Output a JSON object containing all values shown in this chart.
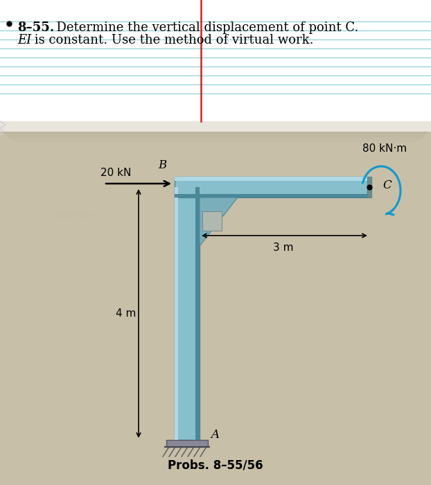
{
  "bg_color": "#c8bfa8",
  "paper_color": "#f8f6f0",
  "notebook_line_color": "#90d0d8",
  "red_line_color": "#cc2222",
  "title_bold": "8–55.",
  "title_rest": "  Determine the vertical displacement of point C.",
  "subtitle": "EI is constant. Use the method of virtual work.",
  "prob_label": "Probs. 8–55/56",
  "force_label": "20 kN",
  "moment_label": "80 kN·m",
  "dim_horiz": "3 m",
  "dim_vert": "4 m",
  "point_B": "B",
  "point_A": "A",
  "point_C": "C",
  "beam_fill": "#88bfcc",
  "beam_light": "#b0d8e4",
  "beam_dark": "#4a8898",
  "beam_mid": "#6aaabb",
  "gusset_fill": "#7aaebb",
  "moment_color": "#1199cc"
}
